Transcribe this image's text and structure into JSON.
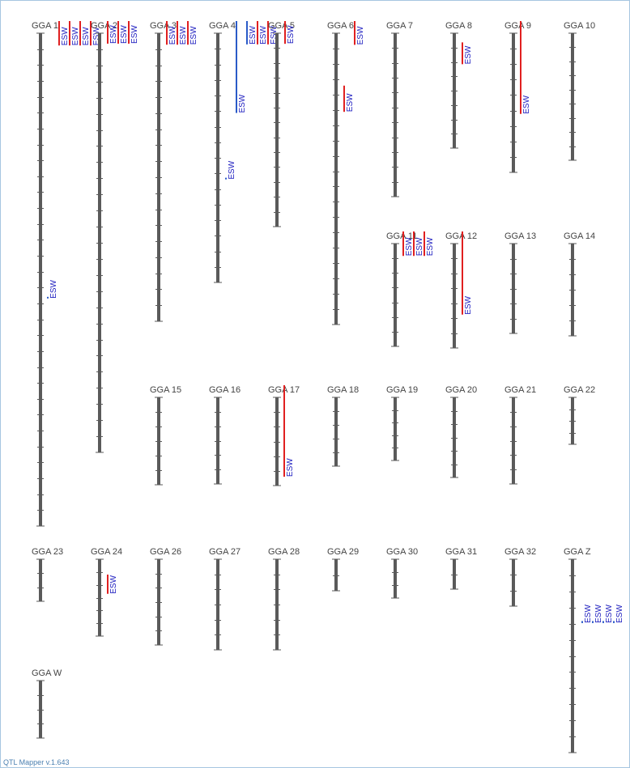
{
  "chart_data": {
    "type": "diagram",
    "footer": "QTL Mapper v.1.643",
    "colors": {
      "chromosome": "#5a5a5a",
      "tick": "#5a5a5a",
      "label": "#444444",
      "qtl_red": "#e02020",
      "qtl_blue": "#2a5bc8",
      "qtl_text": "#2020c0"
    },
    "chromosomes": [
      {
        "name": "GGA 1",
        "ticks": 31,
        "qtls": [
          {
            "trait": "ESW",
            "color": "red",
            "start": 0,
            "end": 0.025
          },
          {
            "trait": "ESW",
            "color": "red",
            "start": 0,
            "end": 0.025
          },
          {
            "trait": "ESW",
            "color": "red",
            "start": 0,
            "end": 0.025
          },
          {
            "trait": "ESW",
            "color": "red",
            "start": 0,
            "end": 0.025
          },
          {
            "trait": "ESW",
            "color": "blue",
            "start": 0.535,
            "end": 0.537
          }
        ]
      },
      {
        "name": "GGA 2",
        "ticks": 26,
        "qtls": [
          {
            "trait": "ESW",
            "color": "red",
            "start": 0,
            "end": 0.025
          },
          {
            "trait": "ESW",
            "color": "red",
            "start": 0,
            "end": 0.025
          },
          {
            "trait": "ESW",
            "color": "red",
            "start": 0,
            "end": 0.025
          }
        ]
      },
      {
        "name": "GGA 3",
        "ticks": 18,
        "qtls": [
          {
            "trait": "ESW",
            "color": "red",
            "start": 0,
            "end": 0.04
          },
          {
            "trait": "ESW",
            "color": "red",
            "start": 0,
            "end": 0.04
          },
          {
            "trait": "ESW",
            "color": "red",
            "start": 0,
            "end": 0.04
          }
        ]
      },
      {
        "name": "GGA 4",
        "ticks": 16,
        "qtls": [
          {
            "trait": "ESW",
            "color": "blue",
            "start": 0,
            "end": 0.32
          },
          {
            "trait": "ESW",
            "color": "blue",
            "start": 0.58,
            "end": 0.585
          },
          {
            "trait": "ESW",
            "color": "blue",
            "start": 0,
            "end": 0.045
          },
          {
            "trait": "ESW",
            "color": "red",
            "start": 0,
            "end": 0.045
          },
          {
            "trait": "ESW",
            "color": "red",
            "start": 0,
            "end": 0.045
          }
        ]
      },
      {
        "name": "GGA 5",
        "ticks": 13,
        "qtls": [
          {
            "trait": "ESW",
            "color": "red",
            "start": 0,
            "end": 0.055
          }
        ]
      },
      {
        "name": "GGA 6",
        "ticks": 19,
        "qtls": [
          {
            "trait": "ESW",
            "color": "red",
            "start": 0,
            "end": 0.04
          },
          {
            "trait": "ESW",
            "color": "red",
            "start": 0.18,
            "end": 0.27
          }
        ]
      },
      {
        "name": "GGA 7",
        "ticks": 11,
        "qtls": []
      },
      {
        "name": "GGA 8",
        "ticks": 8,
        "qtls": [
          {
            "trait": "ESW",
            "color": "red",
            "start": 0.08,
            "end": 0.27
          }
        ]
      },
      {
        "name": "GGA 9",
        "ticks": 9,
        "qtls": [
          {
            "trait": "ESW",
            "color": "red",
            "start": 0,
            "end": 0.58
          }
        ]
      },
      {
        "name": "GGA 10",
        "ticks": 9,
        "qtls": []
      },
      {
        "name": "GGA 11",
        "ticks": 7,
        "qtls": [
          {
            "trait": "ESW",
            "color": "red",
            "start": 0,
            "end": 0.12
          },
          {
            "trait": "ESW",
            "color": "red",
            "start": 0,
            "end": 0.12
          },
          {
            "trait": "ESW",
            "color": "red",
            "start": 0,
            "end": 0.12
          }
        ]
      },
      {
        "name": "GGA 12",
        "ticks": 7,
        "qtls": [
          {
            "trait": "ESW",
            "color": "red",
            "start": 0,
            "end": 0.68
          }
        ]
      },
      {
        "name": "GGA 13",
        "ticks": 6,
        "qtls": []
      },
      {
        "name": "GGA 14",
        "ticks": 6,
        "qtls": []
      },
      {
        "name": "GGA 15",
        "ticks": 6,
        "qtls": []
      },
      {
        "name": "GGA 16",
        "ticks": 6,
        "qtls": []
      },
      {
        "name": "GGA 17",
        "ticks": 6,
        "qtls": [
          {
            "trait": "ESW",
            "color": "red",
            "start": 0,
            "end": 0.9
          }
        ]
      },
      {
        "name": "GGA 18",
        "ticks": 5,
        "qtls": []
      },
      {
        "name": "GGA 19",
        "ticks": 5,
        "qtls": []
      },
      {
        "name": "GGA 20",
        "ticks": 6,
        "qtls": []
      },
      {
        "name": "GGA 21",
        "ticks": 6,
        "qtls": []
      },
      {
        "name": "GGA 22",
        "ticks": 4,
        "qtls": []
      },
      {
        "name": "GGA 23",
        "ticks": 3,
        "qtls": []
      },
      {
        "name": "GGA 24",
        "ticks": 6,
        "qtls": [
          {
            "trait": "ESW",
            "color": "red",
            "start": 0.2,
            "end": 0.45
          }
        ]
      },
      {
        "name": "GGA 26",
        "ticks": 6,
        "qtls": []
      },
      {
        "name": "GGA 27",
        "ticks": 6,
        "qtls": []
      },
      {
        "name": "GGA 28",
        "ticks": 6,
        "qtls": []
      },
      {
        "name": "GGA 29",
        "ticks": 2,
        "qtls": []
      },
      {
        "name": "GGA 30",
        "ticks": 3,
        "qtls": []
      },
      {
        "name": "GGA 31",
        "ticks": 2,
        "qtls": []
      },
      {
        "name": "GGA 32",
        "ticks": 3,
        "qtls": []
      },
      {
        "name": "GGA Z",
        "ticks": 12,
        "qtls": [
          {
            "trait": "ESW",
            "color": "blue",
            "start": 0.32,
            "end": 0.33
          },
          {
            "trait": "ESW",
            "color": "blue",
            "start": 0.32,
            "end": 0.33
          },
          {
            "trait": "ESW",
            "color": "blue",
            "start": 0.32,
            "end": 0.33
          },
          {
            "trait": "ESW",
            "color": "blue",
            "start": 0.32,
            "end": 0.33
          }
        ]
      },
      {
        "name": "GGA W",
        "ticks": 4,
        "qtls": []
      }
    ]
  }
}
